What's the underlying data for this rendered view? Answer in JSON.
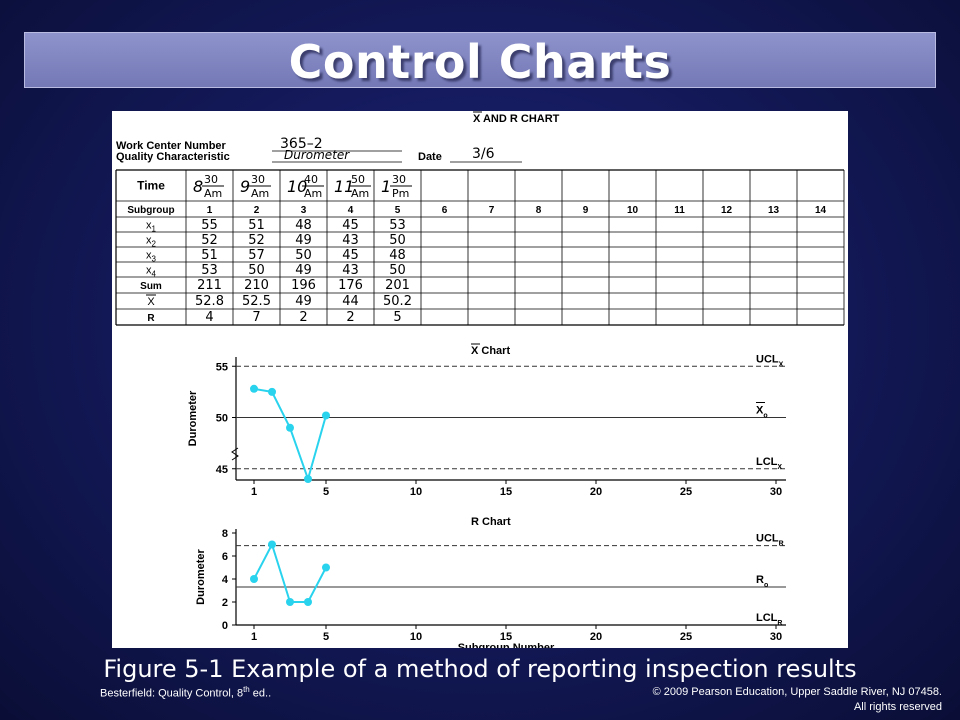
{
  "slide": {
    "title": "Control Charts",
    "caption": "Figure 5-1 Example of a method of reporting inspection results",
    "footer_left": "Besterfield: Quality Control, 8th ed..",
    "footer_left_main": "Besterfield: Quality Control, 8",
    "footer_left_sup": "th",
    "footer_left_tail": " ed..",
    "footer_right_line1": "© 2009 Pearson Education, Upper Saddle River,  NJ 07458.",
    "footer_right_line2": "All rights reserved"
  },
  "form": {
    "heading": "X AND R CHART",
    "work_center_label": "Work Center Number",
    "work_center_value": "365–2",
    "quality_label": "Quality Characteristic",
    "quality_value": "Durometer",
    "date_label": "Date",
    "date_value": "3/6",
    "row_labels": [
      "Time",
      "Subgroup",
      "x1",
      "x2",
      "x3",
      "x4",
      "Sum",
      "X",
      "R"
    ],
    "subgroups": [
      "1",
      "2",
      "3",
      "4",
      "5",
      "6",
      "7",
      "8",
      "9",
      "10",
      "11",
      "12",
      "13",
      "14"
    ],
    "times": [
      {
        "hour": "8",
        "min": "30",
        "ampm": "Am"
      },
      {
        "hour": "9",
        "min": "30",
        "ampm": "Am"
      },
      {
        "hour": "10",
        "min": "40",
        "ampm": "Am"
      },
      {
        "hour": "11",
        "min": "50",
        "ampm": "Am"
      },
      {
        "hour": "1",
        "min": "30",
        "ampm": "Pm"
      }
    ],
    "data_rows": [
      [
        "55",
        "51",
        "48",
        "45",
        "53"
      ],
      [
        "52",
        "52",
        "49",
        "43",
        "50"
      ],
      [
        "51",
        "57",
        "50",
        "45",
        "48"
      ],
      [
        "53",
        "50",
        "49",
        "43",
        "50"
      ],
      [
        "211",
        "210",
        "196",
        "176",
        "201"
      ],
      [
        "52.8",
        "52.5",
        "49",
        "44",
        "50.2"
      ],
      [
        "4",
        "7",
        "2",
        "2",
        "5"
      ]
    ]
  },
  "chart_data": [
    {
      "type": "line",
      "title": "X Chart",
      "xlabel": "",
      "ylabel": "Durometer",
      "x": [
        1,
        2,
        3,
        4,
        5
      ],
      "series": [
        {
          "values": [
            52.8,
            52.5,
            49,
            44,
            50.2
          ]
        }
      ],
      "xlim": [
        0,
        30
      ],
      "ylim": [
        44,
        56
      ],
      "xticks": [
        1,
        5,
        10,
        15,
        20,
        25,
        30
      ],
      "yticks": [
        45,
        50,
        55
      ],
      "control_lines": [
        {
          "label": "UCL",
          "sub": "X",
          "value": 55,
          "style": "dashed"
        },
        {
          "label": "X",
          "sub": "o",
          "value": 50,
          "style": "solid"
        },
        {
          "label": "LCL",
          "sub": "X",
          "value": 45,
          "style": "dashed"
        }
      ],
      "color": "#29d3ee",
      "grid": false
    },
    {
      "type": "line",
      "title": "R Chart",
      "xlabel": "Subgroup Number",
      "ylabel": "Durometer",
      "x": [
        1,
        2,
        3,
        4,
        5
      ],
      "series": [
        {
          "values": [
            4,
            7,
            2,
            2,
            5
          ]
        }
      ],
      "xlim": [
        0,
        30
      ],
      "ylim": [
        0,
        8
      ],
      "xticks": [
        1,
        5,
        10,
        15,
        20,
        25,
        30
      ],
      "yticks": [
        0,
        2,
        4,
        6,
        8
      ],
      "control_lines": [
        {
          "label": "UCL",
          "sub": "R",
          "value": 6.9,
          "style": "dashed"
        },
        {
          "label": "R",
          "sub": "o",
          "value": 3.3,
          "style": "solid"
        },
        {
          "label": "LCL",
          "sub": "R",
          "value": 0,
          "style": "dashed"
        }
      ],
      "color": "#29d3ee",
      "grid": false
    }
  ]
}
